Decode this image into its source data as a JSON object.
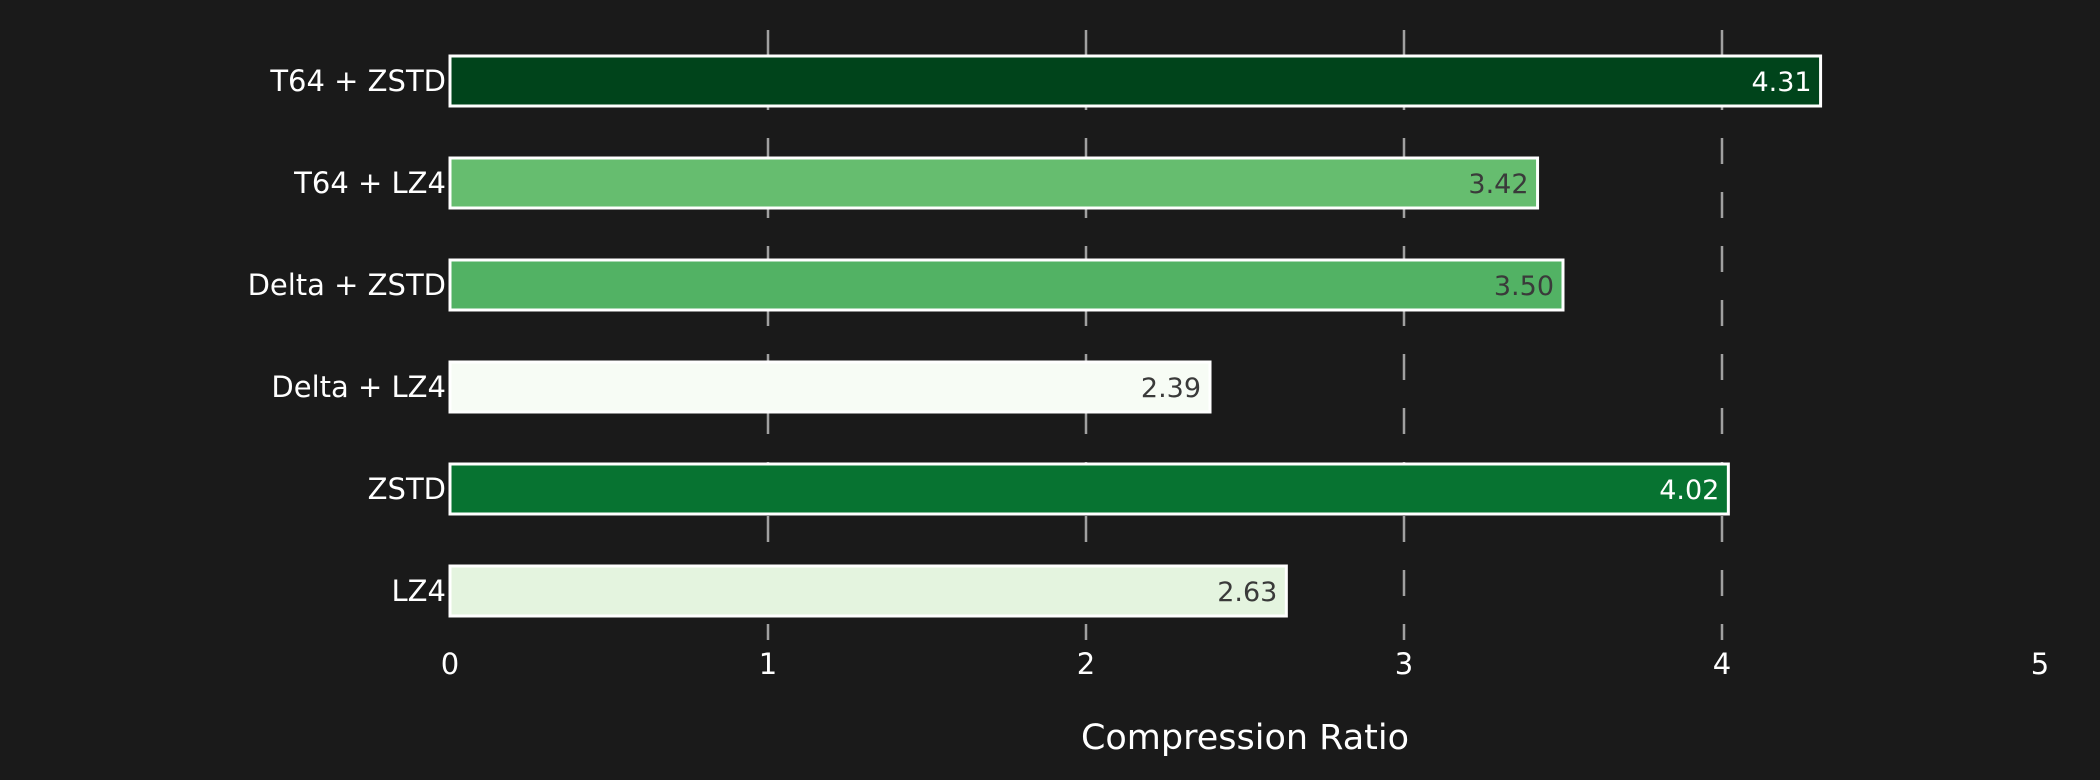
{
  "chart_data": {
    "type": "bar",
    "orientation": "horizontal",
    "categories": [
      "T64 + ZSTD",
      "T64 + LZ4",
      "Delta + ZSTD",
      "Delta + LZ4",
      "ZSTD",
      "LZ4"
    ],
    "values": [
      4.31,
      3.42,
      3.5,
      2.39,
      4.02,
      2.63
    ],
    "value_labels": [
      "4.31",
      "3.42",
      "3.50",
      "2.39",
      "4.02",
      "2.63"
    ],
    "bar_colors": [
      "#00441b",
      "#66bd6f",
      "#52b264",
      "#f7fcf5",
      "#077331",
      "#e4f4df"
    ],
    "value_label_colors": [
      "#ffffff",
      "#3a3a3a",
      "#3a3a3a",
      "#3a3a3a",
      "#ffffff",
      "#3a3a3a"
    ],
    "bar_edge_color": "#ffffff",
    "xlabel": "Compression Ratio",
    "ylabel": "",
    "title": "",
    "xlim": [
      0,
      5
    ],
    "xticks": [
      0,
      1,
      2,
      3,
      4,
      5
    ],
    "xtick_labels": [
      "0",
      "1",
      "2",
      "3",
      "4",
      "5"
    ],
    "grid": "x-dashed",
    "grid_color": "#a0a0a0",
    "background": "#1a1a1a"
  }
}
